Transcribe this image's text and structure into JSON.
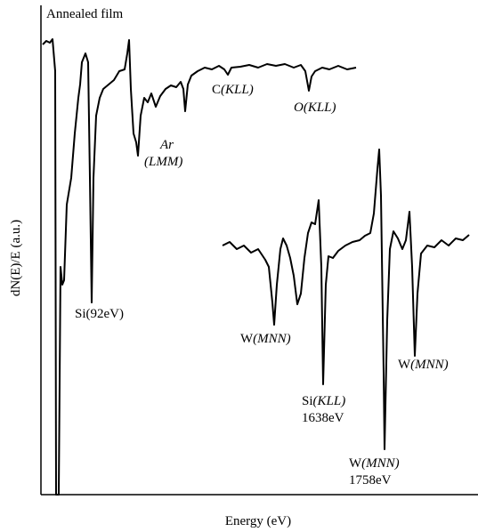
{
  "chart_data": {
    "type": "line",
    "title": "Annealed film",
    "x_label": "Energy (eV)",
    "y_label": "dN(E)/E (a.u.)",
    "annotations": [
      [
        "C",
        "(KLL)"
      ],
      [
        "O(KLL)"
      ],
      [
        "Ar"
      ],
      [
        "(LMM)"
      ],
      [
        "Si(92eV)"
      ],
      [
        "W",
        "(MNN)"
      ],
      [
        "Si",
        "(KLL)"
      ],
      [
        "1638eV"
      ],
      [
        "W",
        "(MNN)"
      ],
      [
        "1758eV"
      ],
      [
        "W",
        "(MNN)"
      ]
    ]
  }
}
